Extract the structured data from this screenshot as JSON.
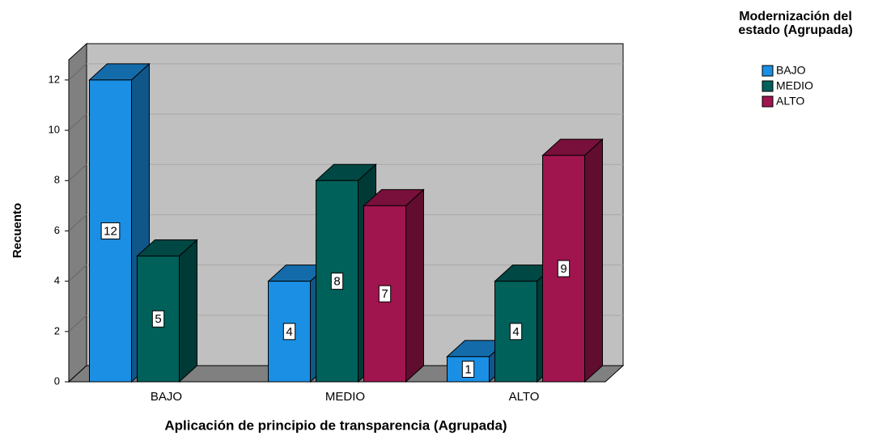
{
  "chart_data": {
    "type": "bar3d",
    "xlabel": "Aplicación de principio de transparencia (Agrupada)",
    "ylabel": "Recuento",
    "legend_title": "Modernización del estado (Agrupada)",
    "categories": [
      "BAJO",
      "MEDIO",
      "ALTO"
    ],
    "series": [
      {
        "name": "BAJO",
        "color": "#1a8fe3",
        "values": [
          12,
          4,
          1
        ]
      },
      {
        "name": "MEDIO",
        "color": "#00605a",
        "values": [
          5,
          8,
          4
        ]
      },
      {
        "name": "ALTO",
        "color": "#a0154e",
        "values": [
          null,
          7,
          9
        ]
      }
    ],
    "ylim": [
      0,
      12.8
    ],
    "yticks": [
      0,
      2,
      4,
      6,
      8,
      10,
      12
    ],
    "grid": true,
    "legend": "right"
  }
}
